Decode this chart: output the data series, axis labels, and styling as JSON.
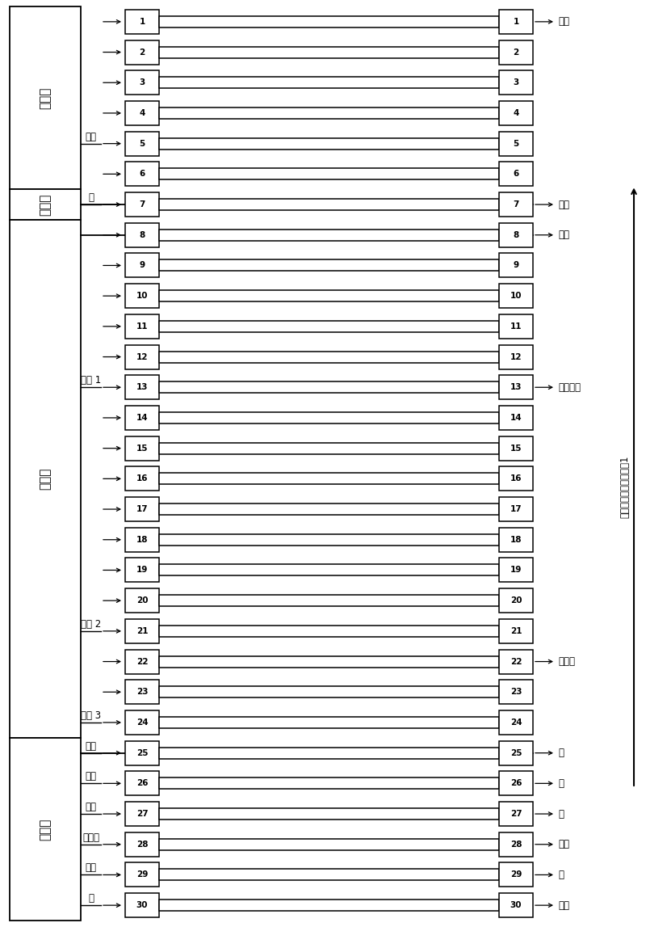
{
  "bg_color": "#ffffff",
  "num_rows": 30,
  "figsize": [
    8.0,
    11.47
  ],
  "dpi": 100,
  "zones": [
    {
      "name": "吸附区",
      "start": 1,
      "end": 6
    },
    {
      "name": "水洗区",
      "start": 7,
      "end": 7
    },
    {
      "name": "解析区",
      "start": 8,
      "end": 24
    },
    {
      "name": "再生区",
      "start": 25,
      "end": 30
    }
  ],
  "left_labels": [
    {
      "row": 5,
      "text": "液樺"
    },
    {
      "row": 7,
      "text": "水"
    },
    {
      "row": 13,
      "text": "液樺 1"
    },
    {
      "row": 21,
      "text": "液樺 2"
    },
    {
      "row": 24,
      "text": "液樺 3"
    },
    {
      "row": 25,
      "text": "废水"
    },
    {
      "row": 26,
      "text": "废盐"
    },
    {
      "row": 27,
      "text": "废水"
    },
    {
      "row": 28,
      "text": "液樺水"
    },
    {
      "row": 29,
      "text": "废水"
    },
    {
      "row": 30,
      "text": "水"
    }
  ],
  "right_labels": [
    {
      "row": 1,
      "text": "废液"
    },
    {
      "row": 7,
      "text": "废水"
    },
    {
      "row": 8,
      "text": "废液"
    },
    {
      "row": 13,
      "text": "粗品米卡"
    },
    {
      "row": 22,
      "text": "回收液"
    },
    {
      "row": 25,
      "text": "水"
    },
    {
      "row": 26,
      "text": "盐"
    },
    {
      "row": 27,
      "text": "水"
    },
    {
      "row": 28,
      "text": "碱水"
    },
    {
      "row": 29,
      "text": "水"
    },
    {
      "row": 30,
      "text": "废水"
    }
  ],
  "right_vert_text": "各吸柱旋转方向，步骤1",
  "zone_boundary_rows": [
    6.5,
    7.5,
    24.5
  ]
}
